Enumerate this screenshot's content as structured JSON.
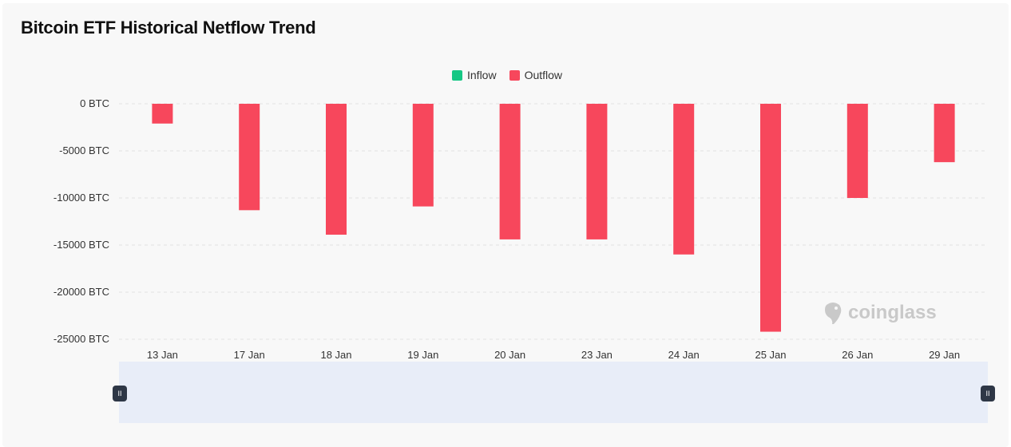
{
  "title": "Bitcoin ETF Historical Netflow Trend",
  "legend": [
    {
      "label": "Inflow",
      "color": "#16c784"
    },
    {
      "label": "Outflow",
      "color": "#f7475c"
    }
  ],
  "watermark": "coinglass",
  "zoom": {
    "handle_glyph": "II",
    "start": 0,
    "end": 1
  },
  "chart_data": {
    "type": "bar",
    "title": "Bitcoin ETF Historical Netflow Trend",
    "categories": [
      "13 Jan",
      "17 Jan",
      "18 Jan",
      "19 Jan",
      "20 Jan",
      "23 Jan",
      "24 Jan",
      "25 Jan",
      "26 Jan",
      "29 Jan"
    ],
    "series": [
      {
        "name": "Outflow",
        "color": "#f7475c",
        "values": [
          -2100,
          -11300,
          -13900,
          -10900,
          -14400,
          -14400,
          -16000,
          -24200,
          -10000,
          -6200
        ]
      },
      {
        "name": "Inflow",
        "color": "#16c784",
        "values": [
          0,
          0,
          0,
          0,
          0,
          0,
          0,
          0,
          0,
          0
        ]
      }
    ],
    "y_ticks": [
      "0 BTC",
      "-5000 BTC",
      "-10000 BTC",
      "-15000 BTC",
      "-20000 BTC",
      "-25000 BTC"
    ],
    "y_tick_values": [
      0,
      -5000,
      -10000,
      -15000,
      -20000,
      -25000
    ],
    "ylim": [
      -25000,
      0
    ],
    "grid": true,
    "legend_position": "top-center",
    "xlabel": "",
    "ylabel": ""
  }
}
